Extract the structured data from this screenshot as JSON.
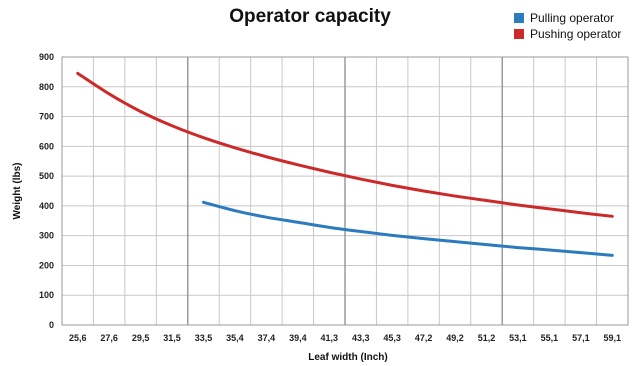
{
  "chart_data": {
    "type": "line",
    "title": "Operator capacity",
    "xlabel": "Leaf width (Inch)",
    "ylabel": "Weight (lbs)",
    "ylim": [
      0,
      900
    ],
    "yticks": [
      0,
      100,
      200,
      300,
      400,
      500,
      600,
      700,
      800,
      900
    ],
    "categories": [
      "25,6",
      "27,6",
      "29,5",
      "31,5",
      "33,5",
      "35,4",
      "37,4",
      "39,4",
      "41,3",
      "43,3",
      "45,3",
      "47,2",
      "49,2",
      "51,2",
      "53,1",
      "55,1",
      "57,1",
      "59,1"
    ],
    "legend_position": "top-right",
    "grid": true,
    "series": [
      {
        "name": "Pulling operator",
        "color": "#2b7bbd",
        "values": [
          null,
          null,
          null,
          null,
          412,
          384,
          362,
          345,
          328,
          314,
          301,
          290,
          280,
          270,
          260,
          252,
          243,
          234
        ]
      },
      {
        "name": "Pushing operator",
        "color": "#cc2a2a",
        "values": [
          845,
          776,
          717,
          669,
          629,
          595,
          565,
          538,
          513,
          490,
          469,
          450,
          433,
          418,
          403,
          390,
          377,
          365
        ]
      }
    ]
  }
}
